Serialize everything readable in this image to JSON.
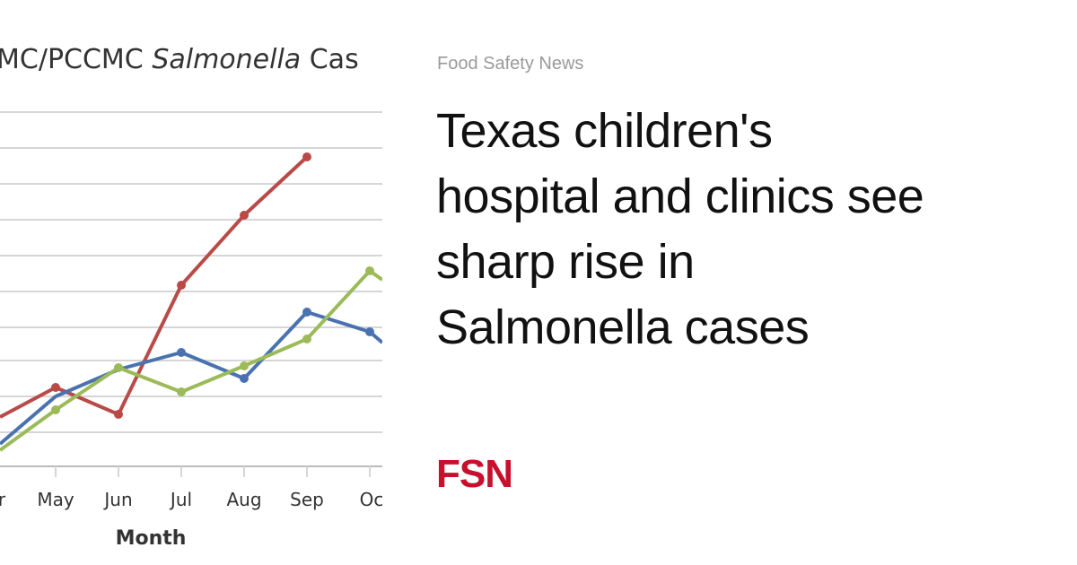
{
  "image": {
    "title_parts": [
      "MC/PCCMC",
      "Salmonella",
      "Cas"
    ],
    "months": [
      "r",
      "May",
      "Jun",
      "Jul",
      "Aug",
      "Sep",
      "Oc"
    ],
    "x_label": "Month"
  },
  "card": {
    "source": "Food Safety News",
    "headline_lines": [
      "Texas children's",
      "hospital and clinics see",
      "sharp rise in",
      "Salmonella cases"
    ],
    "logo": "FSN"
  }
}
